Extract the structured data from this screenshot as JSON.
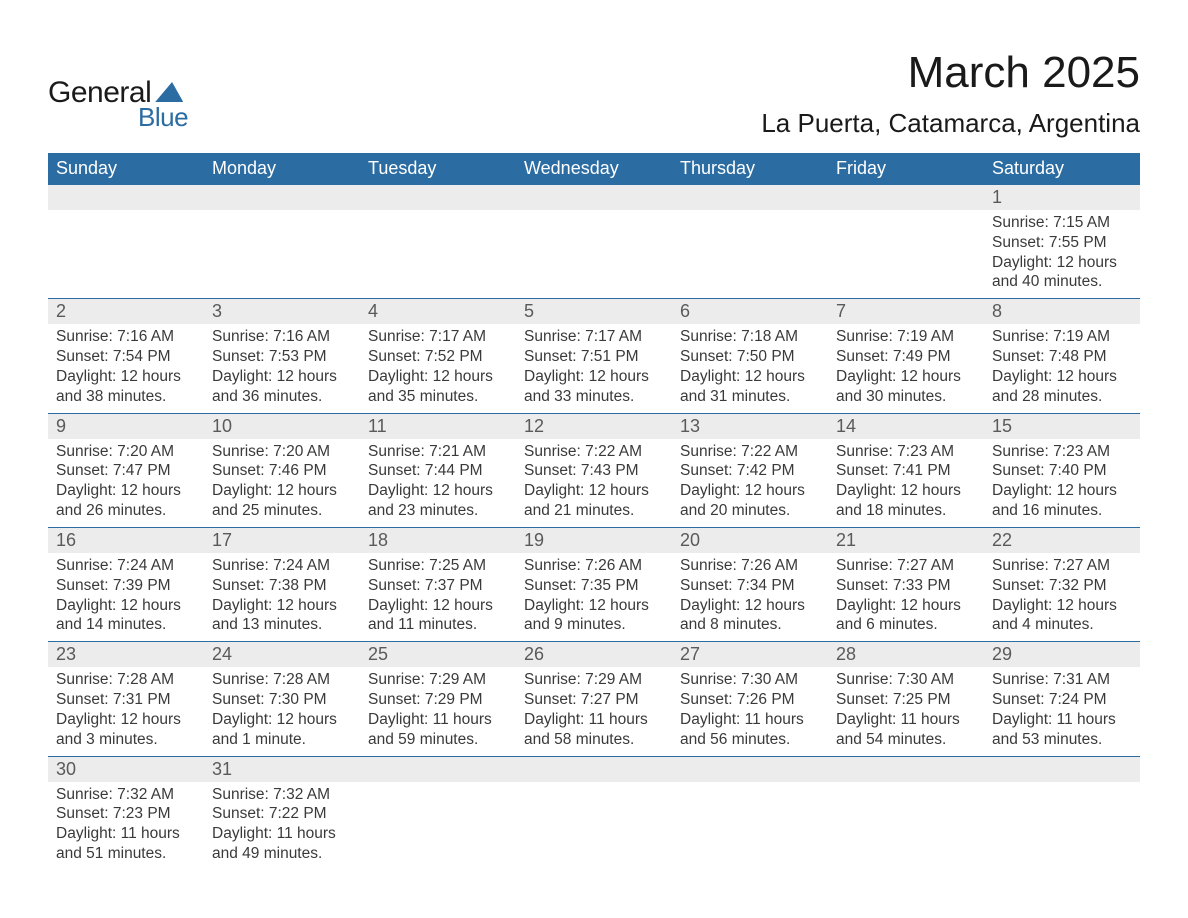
{
  "logo": {
    "word1": "General",
    "word2": "Blue"
  },
  "title": "March 2025",
  "location": "La Puerta, Catamarca, Argentina",
  "colors": {
    "header_bg": "#2b6ca3",
    "header_text": "#ffffff",
    "strip_bg": "#ececec",
    "text": "#3a3a3a",
    "title_text": "#1a1a1a"
  },
  "weekdays": [
    "Sunday",
    "Monday",
    "Tuesday",
    "Wednesday",
    "Thursday",
    "Friday",
    "Saturday"
  ],
  "weeks": [
    [
      null,
      null,
      null,
      null,
      null,
      null,
      {
        "n": "1",
        "sr": "Sunrise: 7:15 AM",
        "ss": "Sunset: 7:55 PM",
        "dl": "Daylight: 12 hours and 40 minutes."
      }
    ],
    [
      {
        "n": "2",
        "sr": "Sunrise: 7:16 AM",
        "ss": "Sunset: 7:54 PM",
        "dl": "Daylight: 12 hours and 38 minutes."
      },
      {
        "n": "3",
        "sr": "Sunrise: 7:16 AM",
        "ss": "Sunset: 7:53 PM",
        "dl": "Daylight: 12 hours and 36 minutes."
      },
      {
        "n": "4",
        "sr": "Sunrise: 7:17 AM",
        "ss": "Sunset: 7:52 PM",
        "dl": "Daylight: 12 hours and 35 minutes."
      },
      {
        "n": "5",
        "sr": "Sunrise: 7:17 AM",
        "ss": "Sunset: 7:51 PM",
        "dl": "Daylight: 12 hours and 33 minutes."
      },
      {
        "n": "6",
        "sr": "Sunrise: 7:18 AM",
        "ss": "Sunset: 7:50 PM",
        "dl": "Daylight: 12 hours and 31 minutes."
      },
      {
        "n": "7",
        "sr": "Sunrise: 7:19 AM",
        "ss": "Sunset: 7:49 PM",
        "dl": "Daylight: 12 hours and 30 minutes."
      },
      {
        "n": "8",
        "sr": "Sunrise: 7:19 AM",
        "ss": "Sunset: 7:48 PM",
        "dl": "Daylight: 12 hours and 28 minutes."
      }
    ],
    [
      {
        "n": "9",
        "sr": "Sunrise: 7:20 AM",
        "ss": "Sunset: 7:47 PM",
        "dl": "Daylight: 12 hours and 26 minutes."
      },
      {
        "n": "10",
        "sr": "Sunrise: 7:20 AM",
        "ss": "Sunset: 7:46 PM",
        "dl": "Daylight: 12 hours and 25 minutes."
      },
      {
        "n": "11",
        "sr": "Sunrise: 7:21 AM",
        "ss": "Sunset: 7:44 PM",
        "dl": "Daylight: 12 hours and 23 minutes."
      },
      {
        "n": "12",
        "sr": "Sunrise: 7:22 AM",
        "ss": "Sunset: 7:43 PM",
        "dl": "Daylight: 12 hours and 21 minutes."
      },
      {
        "n": "13",
        "sr": "Sunrise: 7:22 AM",
        "ss": "Sunset: 7:42 PM",
        "dl": "Daylight: 12 hours and 20 minutes."
      },
      {
        "n": "14",
        "sr": "Sunrise: 7:23 AM",
        "ss": "Sunset: 7:41 PM",
        "dl": "Daylight: 12 hours and 18 minutes."
      },
      {
        "n": "15",
        "sr": "Sunrise: 7:23 AM",
        "ss": "Sunset: 7:40 PM",
        "dl": "Daylight: 12 hours and 16 minutes."
      }
    ],
    [
      {
        "n": "16",
        "sr": "Sunrise: 7:24 AM",
        "ss": "Sunset: 7:39 PM",
        "dl": "Daylight: 12 hours and 14 minutes."
      },
      {
        "n": "17",
        "sr": "Sunrise: 7:24 AM",
        "ss": "Sunset: 7:38 PM",
        "dl": "Daylight: 12 hours and 13 minutes."
      },
      {
        "n": "18",
        "sr": "Sunrise: 7:25 AM",
        "ss": "Sunset: 7:37 PM",
        "dl": "Daylight: 12 hours and 11 minutes."
      },
      {
        "n": "19",
        "sr": "Sunrise: 7:26 AM",
        "ss": "Sunset: 7:35 PM",
        "dl": "Daylight: 12 hours and 9 minutes."
      },
      {
        "n": "20",
        "sr": "Sunrise: 7:26 AM",
        "ss": "Sunset: 7:34 PM",
        "dl": "Daylight: 12 hours and 8 minutes."
      },
      {
        "n": "21",
        "sr": "Sunrise: 7:27 AM",
        "ss": "Sunset: 7:33 PM",
        "dl": "Daylight: 12 hours and 6 minutes."
      },
      {
        "n": "22",
        "sr": "Sunrise: 7:27 AM",
        "ss": "Sunset: 7:32 PM",
        "dl": "Daylight: 12 hours and 4 minutes."
      }
    ],
    [
      {
        "n": "23",
        "sr": "Sunrise: 7:28 AM",
        "ss": "Sunset: 7:31 PM",
        "dl": "Daylight: 12 hours and 3 minutes."
      },
      {
        "n": "24",
        "sr": "Sunrise: 7:28 AM",
        "ss": "Sunset: 7:30 PM",
        "dl": "Daylight: 12 hours and 1 minute."
      },
      {
        "n": "25",
        "sr": "Sunrise: 7:29 AM",
        "ss": "Sunset: 7:29 PM",
        "dl": "Daylight: 11 hours and 59 minutes."
      },
      {
        "n": "26",
        "sr": "Sunrise: 7:29 AM",
        "ss": "Sunset: 7:27 PM",
        "dl": "Daylight: 11 hours and 58 minutes."
      },
      {
        "n": "27",
        "sr": "Sunrise: 7:30 AM",
        "ss": "Sunset: 7:26 PM",
        "dl": "Daylight: 11 hours and 56 minutes."
      },
      {
        "n": "28",
        "sr": "Sunrise: 7:30 AM",
        "ss": "Sunset: 7:25 PM",
        "dl": "Daylight: 11 hours and 54 minutes."
      },
      {
        "n": "29",
        "sr": "Sunrise: 7:31 AM",
        "ss": "Sunset: 7:24 PM",
        "dl": "Daylight: 11 hours and 53 minutes."
      }
    ],
    [
      {
        "n": "30",
        "sr": "Sunrise: 7:32 AM",
        "ss": "Sunset: 7:23 PM",
        "dl": "Daylight: 11 hours and 51 minutes."
      },
      {
        "n": "31",
        "sr": "Sunrise: 7:32 AM",
        "ss": "Sunset: 7:22 PM",
        "dl": "Daylight: 11 hours and 49 minutes."
      },
      null,
      null,
      null,
      null,
      null
    ]
  ]
}
